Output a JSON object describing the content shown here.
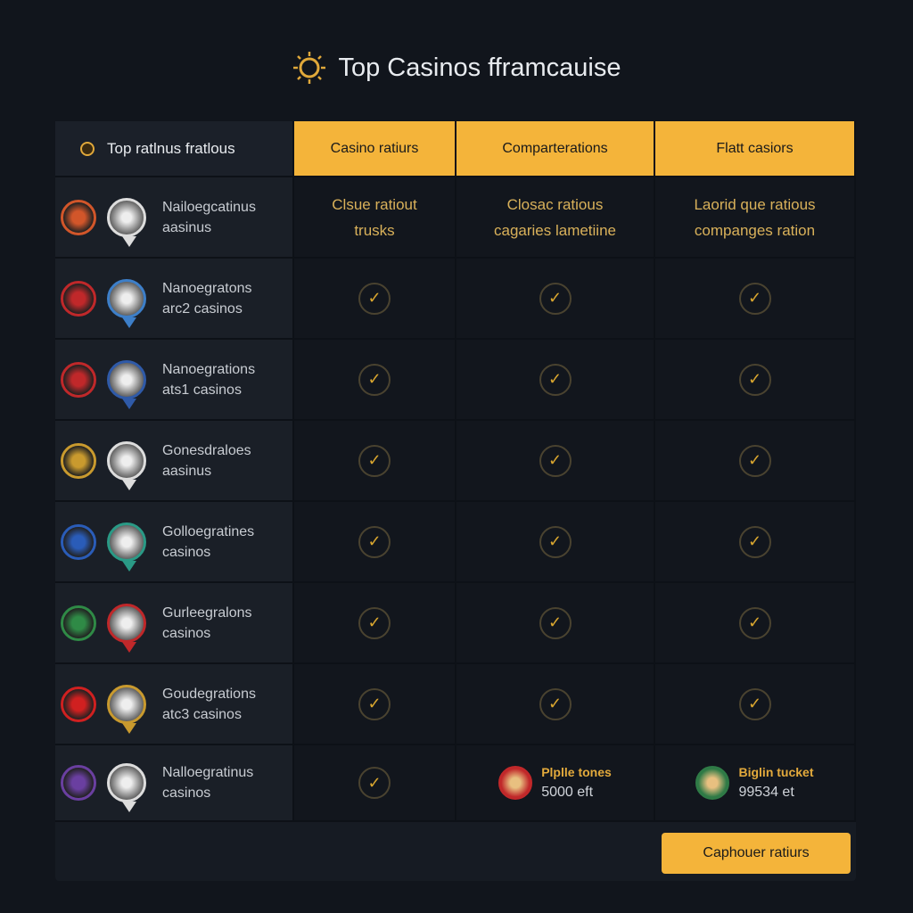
{
  "title": "Top Casinos fframcauise",
  "accent": "#f4b43a",
  "table": {
    "headers": [
      "Top ratlnus fratlous",
      "Casino ratiurs",
      "Comparterations",
      "Flatt casiors"
    ],
    "rows": [
      {
        "name": [
          "Nailoegcatinus",
          "aasinus"
        ],
        "badges": [
          "#d2562a",
          "#dddddd"
        ],
        "cells": [
          {
            "type": "text",
            "lines": [
              "Clsue ratiout",
              "trusks"
            ]
          },
          {
            "type": "text",
            "lines": [
              "Closac ratious",
              "cagaries lametiine"
            ]
          },
          {
            "type": "text",
            "lines": [
              "Laorid que ratious",
              "companges ration"
            ]
          }
        ]
      },
      {
        "name": [
          "Nanoegratons",
          "arc2 casinos"
        ],
        "badges": [
          "#c0282a",
          "#3d7fc9"
        ],
        "cells": [
          {
            "type": "check"
          },
          {
            "type": "check"
          },
          {
            "type": "check"
          }
        ]
      },
      {
        "name": [
          "Nanoegrations",
          "ats1 casinos"
        ],
        "badges": [
          "#c0282a",
          "#2f5aa8"
        ],
        "cells": [
          {
            "type": "check"
          },
          {
            "type": "check"
          },
          {
            "type": "check"
          }
        ]
      },
      {
        "name": [
          "Gonesdraloes",
          "aasinus"
        ],
        "badges": [
          "#c99a2e",
          "#dddddd"
        ],
        "cells": [
          {
            "type": "check"
          },
          {
            "type": "check"
          },
          {
            "type": "check"
          }
        ]
      },
      {
        "name": [
          "Golloegratines",
          "casinos"
        ],
        "badges": [
          "#2a5cb8",
          "#2a9a86"
        ],
        "cells": [
          {
            "type": "check"
          },
          {
            "type": "check"
          },
          {
            "type": "check"
          }
        ]
      },
      {
        "name": [
          "Gurleegralons",
          "casinos"
        ],
        "badges": [
          "#2f8a46",
          "#c0282a"
        ],
        "cells": [
          {
            "type": "check"
          },
          {
            "type": "check"
          },
          {
            "type": "check"
          }
        ]
      },
      {
        "name": [
          "Goudegrations",
          "atc3 casinos"
        ],
        "badges": [
          "#d02020",
          "#c99a2e"
        ],
        "cells": [
          {
            "type": "check"
          },
          {
            "type": "check"
          },
          {
            "type": "check"
          }
        ]
      },
      {
        "name": [
          "Nalloegratinus",
          "casinos"
        ],
        "badges": [
          "#6a3fa0",
          "#dddddd"
        ],
        "cells": [
          {
            "type": "check"
          },
          {
            "type": "prize",
            "label": "Plplle tones",
            "value": "5000 eft",
            "color": "#c0282a"
          },
          {
            "type": "prize",
            "label": "Biglin tucket",
            "value": "99534 et",
            "color": "#2f7a46"
          }
        ]
      }
    ]
  },
  "button_label": "Caphouer ratiurs"
}
